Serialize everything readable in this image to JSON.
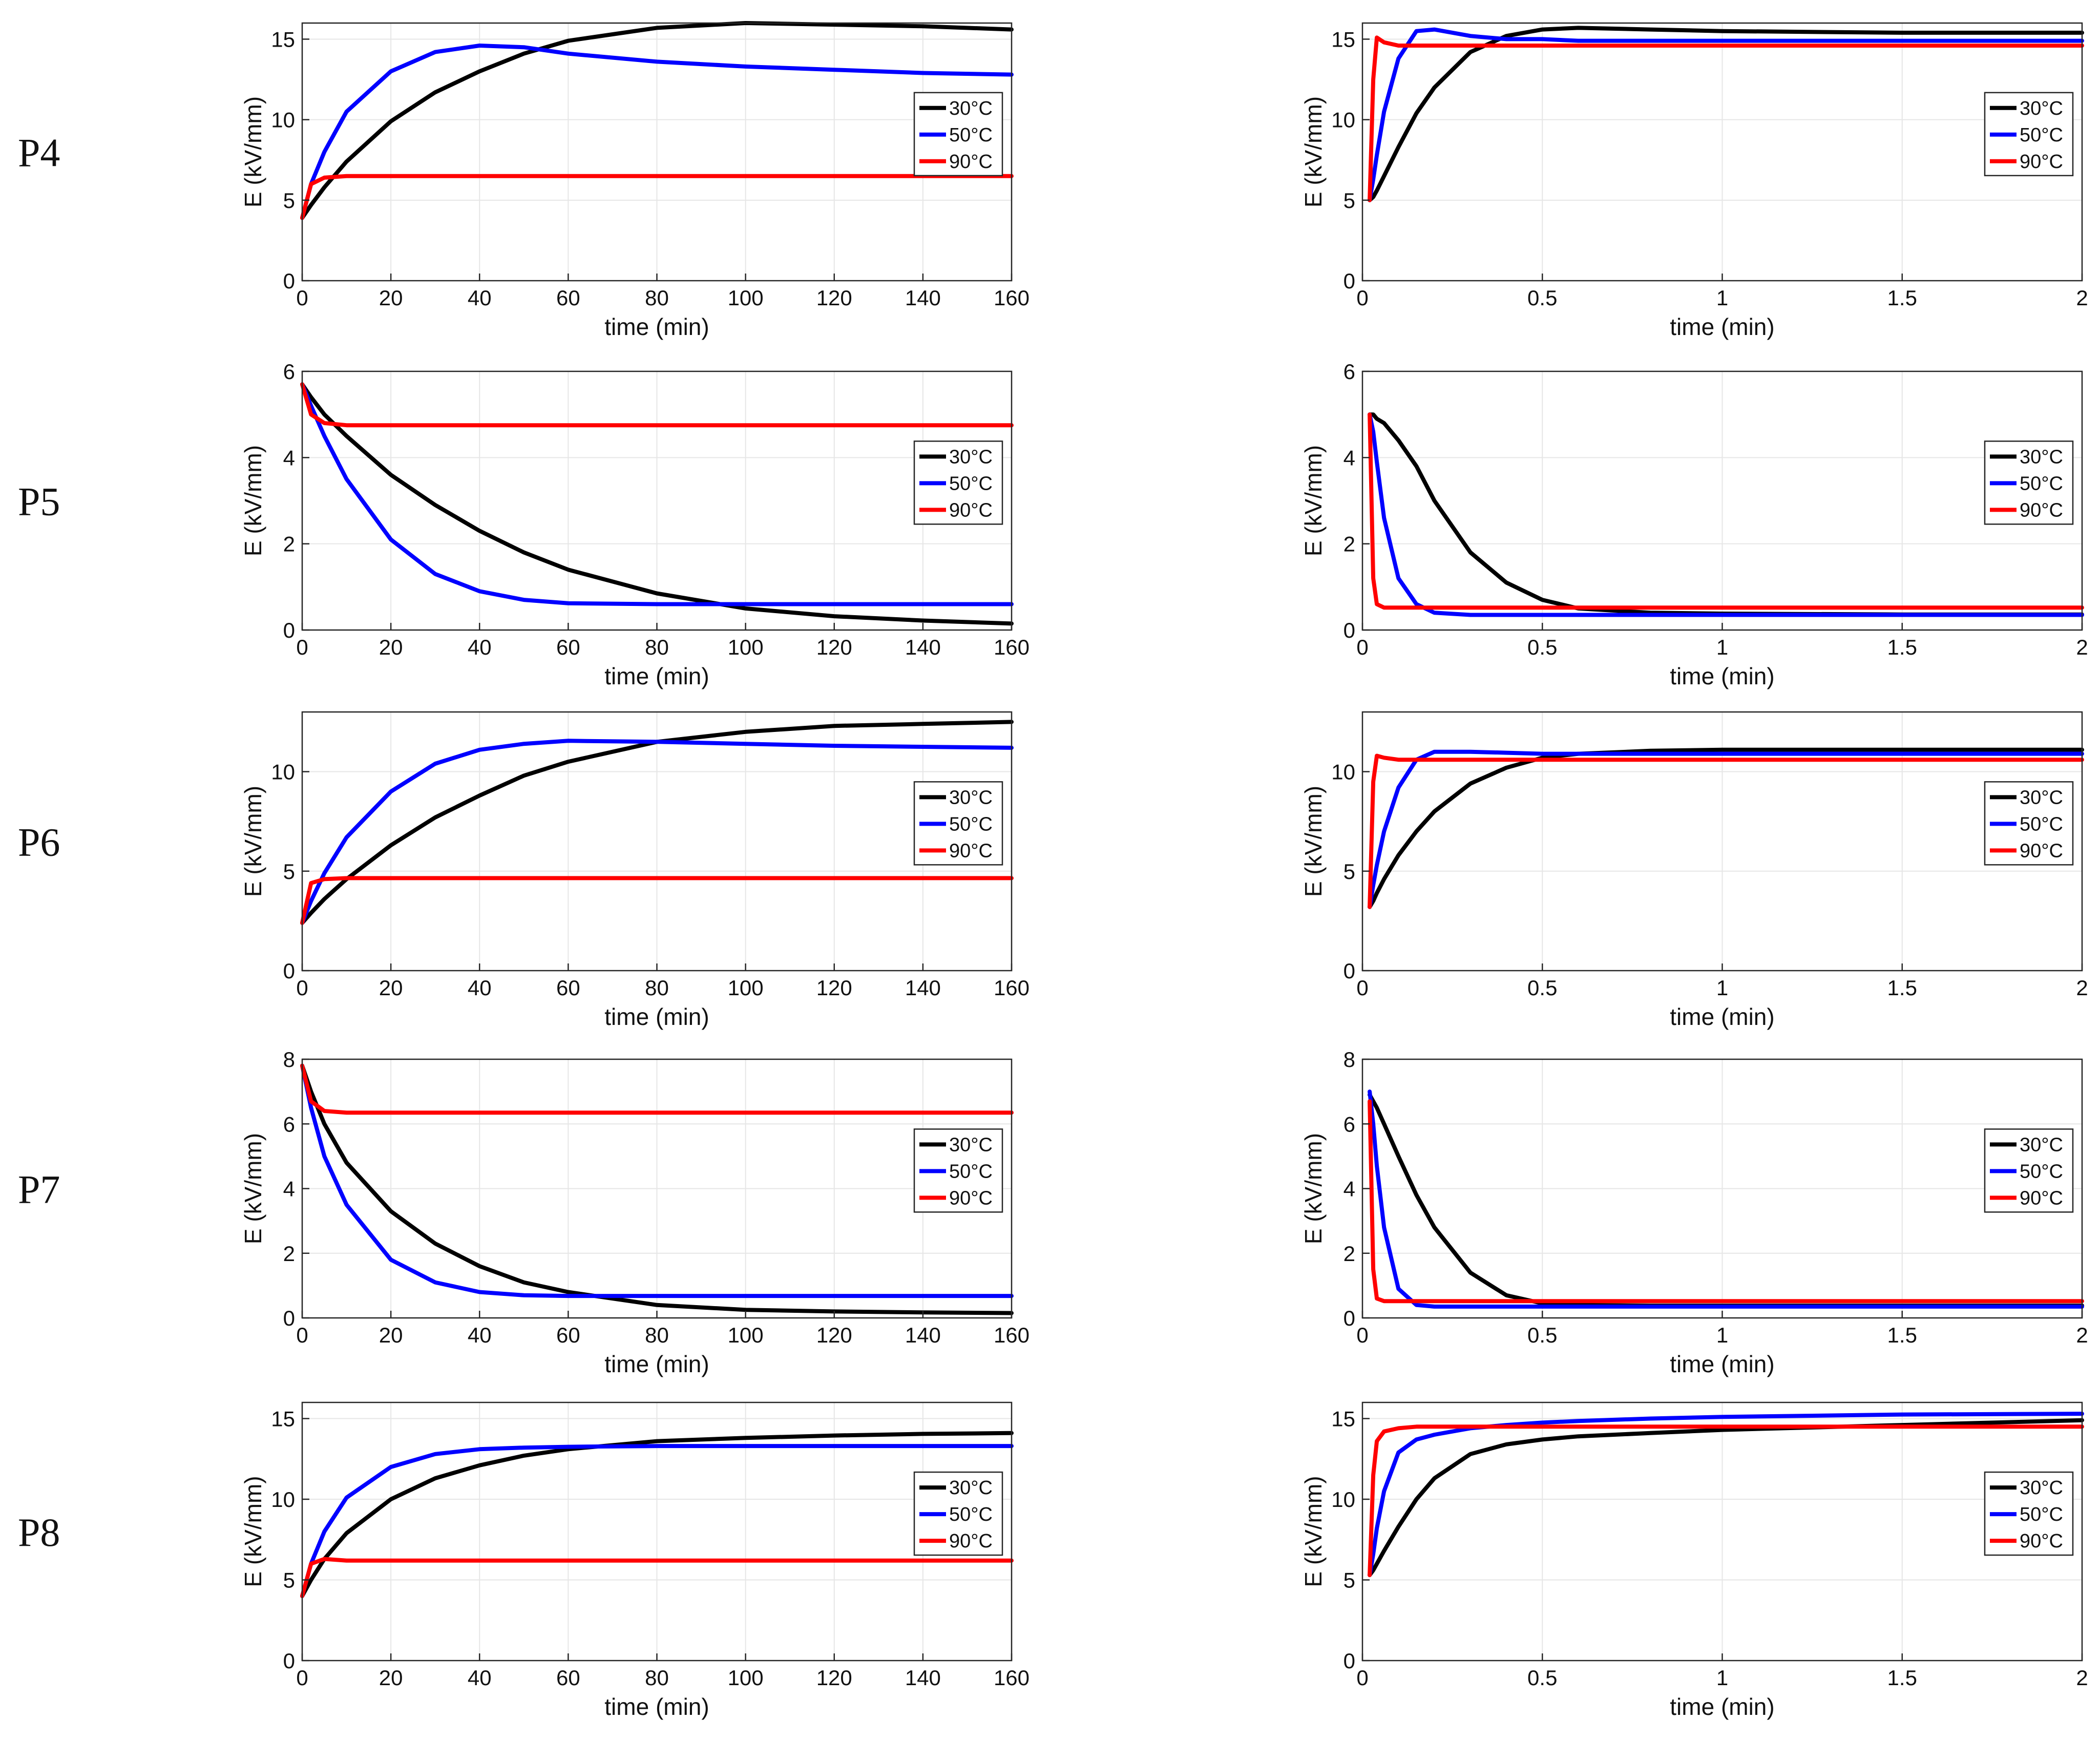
{
  "row_labels": [
    "P4",
    "P5",
    "P6",
    "P7",
    "P8"
  ],
  "colors": {
    "30°C": "#000000",
    "50°C": "#0000ff",
    "90°C": "#ff0000"
  },
  "chart_data": [
    {
      "id": "P4-long",
      "type": "line",
      "row_label": "P4",
      "xlabel": "time (min)",
      "ylabel": "E (kV/mm)",
      "xlim": [
        0,
        160
      ],
      "ylim": [
        0,
        16
      ],
      "grid": true,
      "legend": "right",
      "xticks": [
        0,
        20,
        40,
        60,
        80,
        100,
        120,
        140,
        160
      ],
      "xtick_labels": [
        "0",
        "20",
        "40",
        "60",
        "80",
        "100",
        "120",
        "140",
        "160"
      ],
      "yticks": [
        0,
        5,
        10,
        15
      ],
      "ytick_labels": [
        "0",
        "5",
        "10",
        "15"
      ],
      "x": [
        0,
        2,
        5,
        10,
        20,
        30,
        40,
        50,
        60,
        80,
        100,
        120,
        140,
        160
      ],
      "series": [
        {
          "name": "30°C",
          "values": [
            3.9,
            4.7,
            5.8,
            7.4,
            9.9,
            11.7,
            13.0,
            14.1,
            14.9,
            15.7,
            16.0,
            15.9,
            15.8,
            15.6
          ]
        },
        {
          "name": "50°C",
          "values": [
            3.9,
            6.0,
            8.0,
            10.5,
            13.0,
            14.2,
            14.6,
            14.5,
            14.1,
            13.6,
            13.3,
            13.1,
            12.9,
            12.8
          ]
        },
        {
          "name": "90°C",
          "values": [
            3.9,
            6.0,
            6.4,
            6.5,
            6.5,
            6.5,
            6.5,
            6.5,
            6.5,
            6.5,
            6.5,
            6.5,
            6.5,
            6.5
          ]
        }
      ]
    },
    {
      "id": "P4-short",
      "type": "line",
      "row_label": "P4",
      "xlabel": "time (min)",
      "ylabel": "E (kV/mm)",
      "xlim": [
        0,
        2
      ],
      "ylim": [
        0,
        16
      ],
      "grid": true,
      "legend": "right",
      "xticks": [
        0,
        0.5,
        1,
        1.5,
        2
      ],
      "xtick_labels": [
        "0",
        "0.5",
        "1",
        "1.5",
        "2"
      ],
      "yticks": [
        0,
        5,
        10,
        15
      ],
      "ytick_labels": [
        "0",
        "5",
        "10",
        "15"
      ],
      "x": [
        0.02,
        0.03,
        0.04,
        0.06,
        0.1,
        0.15,
        0.2,
        0.3,
        0.4,
        0.5,
        0.6,
        0.8,
        1,
        1.5,
        2
      ],
      "series": [
        {
          "name": "30°C",
          "values": [
            5.0,
            5.2,
            5.6,
            6.5,
            8.3,
            10.4,
            12.0,
            14.2,
            15.2,
            15.6,
            15.7,
            15.6,
            15.5,
            15.4,
            15.4
          ]
        },
        {
          "name": "50°C",
          "values": [
            5.0,
            6.3,
            7.8,
            10.5,
            13.8,
            15.5,
            15.6,
            15.2,
            15.0,
            15.0,
            14.9,
            14.9,
            14.9,
            14.9,
            14.9
          ]
        },
        {
          "name": "90°C",
          "values": [
            5.0,
            12.5,
            15.1,
            14.8,
            14.6,
            14.6,
            14.6,
            14.6,
            14.6,
            14.6,
            14.6,
            14.6,
            14.6,
            14.6,
            14.6
          ]
        }
      ]
    },
    {
      "id": "P5-long",
      "type": "line",
      "row_label": "P5",
      "xlabel": "time (min)",
      "ylabel": "E (kV/mm)",
      "xlim": [
        0,
        160
      ],
      "ylim": [
        0,
        6
      ],
      "grid": true,
      "legend": "right",
      "xticks": [
        0,
        20,
        40,
        60,
        80,
        100,
        120,
        140,
        160
      ],
      "xtick_labels": [
        "0",
        "20",
        "40",
        "60",
        "80",
        "100",
        "120",
        "140",
        "160"
      ],
      "yticks": [
        0,
        2,
        4,
        6
      ],
      "ytick_labels": [
        "0",
        "2",
        "4",
        "6"
      ],
      "x": [
        0,
        2,
        5,
        10,
        20,
        30,
        40,
        50,
        60,
        80,
        100,
        120,
        140,
        160
      ],
      "series": [
        {
          "name": "30°C",
          "values": [
            5.7,
            5.4,
            5.0,
            4.5,
            3.6,
            2.9,
            2.3,
            1.8,
            1.4,
            0.85,
            0.5,
            0.32,
            0.22,
            0.15
          ]
        },
        {
          "name": "50°C",
          "values": [
            5.7,
            5.2,
            4.5,
            3.5,
            2.1,
            1.3,
            0.9,
            0.7,
            0.62,
            0.6,
            0.6,
            0.6,
            0.6,
            0.6
          ]
        },
        {
          "name": "90°C",
          "values": [
            5.7,
            5.0,
            4.8,
            4.75,
            4.75,
            4.75,
            4.75,
            4.75,
            4.75,
            4.75,
            4.75,
            4.75,
            4.75,
            4.75
          ]
        }
      ]
    },
    {
      "id": "P5-short",
      "type": "line",
      "row_label": "P5",
      "xlabel": "time (min)",
      "ylabel": "E (kV/mm)",
      "xlim": [
        0,
        2
      ],
      "ylim": [
        0,
        6
      ],
      "grid": true,
      "legend": "right",
      "xticks": [
        0,
        0.5,
        1,
        1.5,
        2
      ],
      "xtick_labels": [
        "0",
        "0.5",
        "1",
        "1.5",
        "2"
      ],
      "yticks": [
        0,
        2,
        4,
        6
      ],
      "ytick_labels": [
        "0",
        "2",
        "4",
        "6"
      ],
      "x": [
        0.02,
        0.03,
        0.04,
        0.06,
        0.1,
        0.15,
        0.2,
        0.3,
        0.4,
        0.5,
        0.6,
        0.8,
        1,
        1.5,
        2
      ],
      "series": [
        {
          "name": "30°C",
          "values": [
            5.0,
            5.0,
            4.9,
            4.8,
            4.4,
            3.8,
            3.0,
            1.8,
            1.1,
            0.7,
            0.5,
            0.4,
            0.38,
            0.36,
            0.36
          ]
        },
        {
          "name": "50°C",
          "values": [
            5.0,
            4.6,
            3.9,
            2.6,
            1.2,
            0.6,
            0.4,
            0.35,
            0.35,
            0.35,
            0.35,
            0.35,
            0.35,
            0.35,
            0.35
          ]
        },
        {
          "name": "90°C",
          "values": [
            5.0,
            1.2,
            0.6,
            0.52,
            0.52,
            0.52,
            0.52,
            0.52,
            0.52,
            0.52,
            0.52,
            0.52,
            0.52,
            0.52,
            0.52
          ]
        }
      ]
    },
    {
      "id": "P6-long",
      "type": "line",
      "row_label": "P6",
      "xlabel": "time (min)",
      "ylabel": "E (kV/mm)",
      "xlim": [
        0,
        160
      ],
      "ylim": [
        0,
        13
      ],
      "grid": true,
      "legend": "right",
      "xticks": [
        0,
        20,
        40,
        60,
        80,
        100,
        120,
        140,
        160
      ],
      "xtick_labels": [
        "0",
        "20",
        "40",
        "60",
        "80",
        "100",
        "120",
        "140",
        "160"
      ],
      "yticks": [
        0,
        5,
        10
      ],
      "ytick_labels": [
        "0",
        "5",
        "10"
      ],
      "x": [
        0,
        2,
        5,
        10,
        20,
        30,
        40,
        50,
        60,
        80,
        100,
        120,
        140,
        160
      ],
      "series": [
        {
          "name": "30°C",
          "values": [
            2.4,
            2.9,
            3.6,
            4.6,
            6.3,
            7.7,
            8.8,
            9.8,
            10.5,
            11.5,
            12.0,
            12.3,
            12.4,
            12.5
          ]
        },
        {
          "name": "50°C",
          "values": [
            2.4,
            3.5,
            4.9,
            6.7,
            9.0,
            10.4,
            11.1,
            11.4,
            11.55,
            11.5,
            11.4,
            11.3,
            11.25,
            11.2
          ]
        },
        {
          "name": "90°C",
          "values": [
            2.4,
            4.4,
            4.6,
            4.65,
            4.65,
            4.65,
            4.65,
            4.65,
            4.65,
            4.65,
            4.65,
            4.65,
            4.65,
            4.65
          ]
        }
      ]
    },
    {
      "id": "P6-short",
      "type": "line",
      "row_label": "P6",
      "xlabel": "time (min)",
      "ylabel": "E (kV/mm)",
      "xlim": [
        0,
        2
      ],
      "ylim": [
        0,
        13
      ],
      "grid": true,
      "legend": "right",
      "xticks": [
        0,
        0.5,
        1,
        1.5,
        2
      ],
      "xtick_labels": [
        "0",
        "0.5",
        "1",
        "1.5",
        "2"
      ],
      "yticks": [
        0,
        5,
        10
      ],
      "ytick_labels": [
        "0",
        "5",
        "10"
      ],
      "x": [
        0.02,
        0.03,
        0.04,
        0.06,
        0.1,
        0.15,
        0.2,
        0.3,
        0.4,
        0.5,
        0.6,
        0.8,
        1,
        1.5,
        2
      ],
      "series": [
        {
          "name": "30°C",
          "values": [
            3.2,
            3.5,
            3.9,
            4.6,
            5.8,
            7.0,
            8.0,
            9.4,
            10.2,
            10.7,
            10.9,
            11.05,
            11.1,
            11.1,
            11.1
          ]
        },
        {
          "name": "50°C",
          "values": [
            3.2,
            4.3,
            5.3,
            7.0,
            9.2,
            10.6,
            11.0,
            11.0,
            10.95,
            10.9,
            10.9,
            10.9,
            10.9,
            10.9,
            10.9
          ]
        },
        {
          "name": "90°C",
          "values": [
            3.2,
            9.5,
            10.8,
            10.7,
            10.6,
            10.6,
            10.6,
            10.6,
            10.6,
            10.6,
            10.6,
            10.6,
            10.6,
            10.6,
            10.6
          ]
        }
      ]
    },
    {
      "id": "P7-long",
      "type": "line",
      "row_label": "P7",
      "xlabel": "time (min)",
      "ylabel": "E (kV/mm)",
      "xlim": [
        0,
        160
      ],
      "ylim": [
        0,
        8
      ],
      "grid": true,
      "legend": "right",
      "xticks": [
        0,
        20,
        40,
        60,
        80,
        100,
        120,
        140,
        160
      ],
      "xtick_labels": [
        "0",
        "20",
        "40",
        "60",
        "80",
        "100",
        "120",
        "140",
        "160"
      ],
      "yticks": [
        0,
        2,
        4,
        6,
        8
      ],
      "ytick_labels": [
        "0",
        "2",
        "4",
        "6",
        "8"
      ],
      "x": [
        0,
        2,
        5,
        10,
        20,
        30,
        40,
        50,
        60,
        80,
        100,
        120,
        140,
        160
      ],
      "series": [
        {
          "name": "30°C",
          "values": [
            7.8,
            7.0,
            6.0,
            4.8,
            3.3,
            2.3,
            1.6,
            1.1,
            0.8,
            0.4,
            0.25,
            0.2,
            0.17,
            0.15
          ]
        },
        {
          "name": "50°C",
          "values": [
            7.8,
            6.5,
            5.0,
            3.5,
            1.8,
            1.1,
            0.8,
            0.7,
            0.68,
            0.68,
            0.68,
            0.68,
            0.68,
            0.68
          ]
        },
        {
          "name": "90°C",
          "values": [
            7.8,
            6.7,
            6.4,
            6.35,
            6.35,
            6.35,
            6.35,
            6.35,
            6.35,
            6.35,
            6.35,
            6.35,
            6.35,
            6.35
          ]
        }
      ]
    },
    {
      "id": "P7-short",
      "type": "line",
      "row_label": "P7",
      "xlabel": "time (min)",
      "ylabel": "E (kV/mm)",
      "xlim": [
        0,
        2
      ],
      "ylim": [
        0,
        8
      ],
      "grid": true,
      "legend": "right",
      "xticks": [
        0,
        0.5,
        1,
        1.5,
        2
      ],
      "xtick_labels": [
        "0",
        "0.5",
        "1",
        "1.5",
        "2"
      ],
      "yticks": [
        0,
        2,
        4,
        6,
        8
      ],
      "ytick_labels": [
        "0",
        "2",
        "4",
        "6",
        "8"
      ],
      "x": [
        0.02,
        0.03,
        0.04,
        0.06,
        0.1,
        0.15,
        0.2,
        0.3,
        0.4,
        0.5,
        0.6,
        0.8,
        1,
        1.5,
        2
      ],
      "series": [
        {
          "name": "30°C",
          "values": [
            6.9,
            6.7,
            6.5,
            6.0,
            5.0,
            3.8,
            2.8,
            1.4,
            0.7,
            0.45,
            0.4,
            0.38,
            0.38,
            0.38,
            0.38
          ]
        },
        {
          "name": "50°C",
          "values": [
            7.0,
            6.0,
            4.7,
            2.8,
            0.9,
            0.4,
            0.35,
            0.35,
            0.35,
            0.35,
            0.35,
            0.35,
            0.35,
            0.35,
            0.35
          ]
        },
        {
          "name": "90°C",
          "values": [
            6.7,
            1.5,
            0.6,
            0.52,
            0.52,
            0.52,
            0.52,
            0.52,
            0.52,
            0.52,
            0.52,
            0.52,
            0.52,
            0.52,
            0.52
          ]
        }
      ]
    },
    {
      "id": "P8-long",
      "type": "line",
      "row_label": "P8",
      "xlabel": "time (min)",
      "ylabel": "E (kV/mm)",
      "xlim": [
        0,
        160
      ],
      "ylim": [
        0,
        16
      ],
      "grid": true,
      "legend": "right",
      "xticks": [
        0,
        20,
        40,
        60,
        80,
        100,
        120,
        140,
        160
      ],
      "xtick_labels": [
        "0",
        "20",
        "40",
        "60",
        "80",
        "100",
        "120",
        "140",
        "160"
      ],
      "yticks": [
        0,
        5,
        10,
        15
      ],
      "ytick_labels": [
        "0",
        "5",
        "10",
        "15"
      ],
      "x": [
        0,
        2,
        5,
        10,
        20,
        30,
        40,
        50,
        60,
        80,
        100,
        120,
        140,
        160
      ],
      "series": [
        {
          "name": "30°C",
          "values": [
            4.0,
            5.0,
            6.3,
            7.9,
            10.0,
            11.3,
            12.1,
            12.7,
            13.1,
            13.6,
            13.8,
            13.95,
            14.05,
            14.1
          ]
        },
        {
          "name": "50°C",
          "values": [
            4.0,
            6.0,
            8.0,
            10.1,
            12.0,
            12.8,
            13.1,
            13.2,
            13.25,
            13.3,
            13.3,
            13.3,
            13.3,
            13.3
          ]
        },
        {
          "name": "90°C",
          "values": [
            4.0,
            6.0,
            6.3,
            6.2,
            6.2,
            6.2,
            6.2,
            6.2,
            6.2,
            6.2,
            6.2,
            6.2,
            6.2,
            6.2
          ]
        }
      ]
    },
    {
      "id": "P8-short",
      "type": "line",
      "row_label": "P8",
      "xlabel": "time (min)",
      "ylabel": "E (kV/mm)",
      "xlim": [
        0,
        2
      ],
      "ylim": [
        0,
        16
      ],
      "grid": true,
      "legend": "right",
      "xticks": [
        0,
        0.5,
        1,
        1.5,
        2
      ],
      "xtick_labels": [
        "0",
        "0.5",
        "1",
        "1.5",
        "2"
      ],
      "yticks": [
        0,
        5,
        10,
        15
      ],
      "ytick_labels": [
        "0",
        "5",
        "10",
        "15"
      ],
      "x": [
        0.02,
        0.03,
        0.04,
        0.06,
        0.1,
        0.15,
        0.2,
        0.3,
        0.4,
        0.5,
        0.6,
        0.8,
        1,
        1.5,
        2
      ],
      "series": [
        {
          "name": "30°C",
          "values": [
            5.3,
            5.6,
            6.0,
            6.8,
            8.3,
            10.0,
            11.3,
            12.8,
            13.4,
            13.7,
            13.9,
            14.1,
            14.3,
            14.6,
            14.9
          ]
        },
        {
          "name": "50°C",
          "values": [
            5.3,
            6.6,
            8.2,
            10.5,
            12.9,
            13.7,
            14.0,
            14.4,
            14.6,
            14.75,
            14.85,
            15.0,
            15.1,
            15.25,
            15.3
          ]
        },
        {
          "name": "90°C",
          "values": [
            5.3,
            11.5,
            13.6,
            14.2,
            14.4,
            14.5,
            14.5,
            14.5,
            14.5,
            14.5,
            14.5,
            14.5,
            14.5,
            14.5,
            14.5
          ]
        }
      ]
    }
  ]
}
